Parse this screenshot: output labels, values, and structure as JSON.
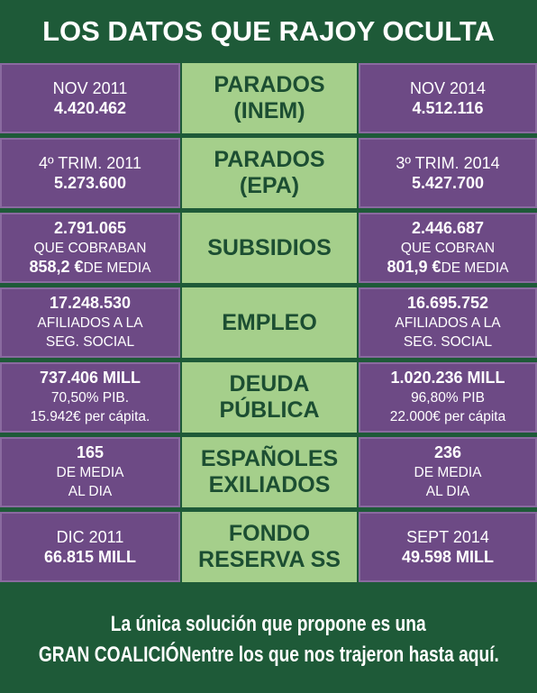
{
  "header": {
    "title": "LOS DATOS QUE RAJOY OCULTA"
  },
  "rows": [
    {
      "left": [
        [
          {
            "text": "NOV 2011"
          }
        ],
        [
          {
            "text": "4.420.462",
            "bold": true
          }
        ]
      ],
      "label": [
        "PARADOS",
        "(INEM)"
      ],
      "right": [
        [
          {
            "text": "NOV 2014"
          }
        ],
        [
          {
            "text": "4.512.116",
            "bold": true
          }
        ]
      ]
    },
    {
      "left": [
        [
          {
            "text": "4º TRIM. 2011"
          }
        ],
        [
          {
            "text": "5.273.600",
            "bold": true
          }
        ]
      ],
      "label": [
        "PARADOS",
        "(EPA)"
      ],
      "right": [
        [
          {
            "text": "3º TRIM. 2014"
          }
        ],
        [
          {
            "text": "5.427.700",
            "bold": true
          }
        ]
      ]
    },
    {
      "left": [
        [
          {
            "text": "2.791.065",
            "bold": true
          }
        ],
        [
          {
            "text": "QUE COBRABAN"
          }
        ],
        [
          {
            "text": "858,2 €",
            "bold": true
          },
          {
            "text": "DE MEDIA"
          }
        ]
      ],
      "label": [
        "SUBSIDIOS"
      ],
      "right": [
        [
          {
            "text": "2.446.687",
            "bold": true
          }
        ],
        [
          {
            "text": "QUE COBRAN"
          }
        ],
        [
          {
            "text": "801,9 €",
            "bold": true
          },
          {
            "text": "DE MEDIA"
          }
        ]
      ]
    },
    {
      "left": [
        [
          {
            "text": "17.248.530",
            "bold": true
          }
        ],
        [
          {
            "text": "AFILIADOS A LA"
          }
        ],
        [
          {
            "text": "SEG. SOCIAL"
          }
        ]
      ],
      "label": [
        "EMPLEO"
      ],
      "right": [
        [
          {
            "text": "16.695.752",
            "bold": true
          }
        ],
        [
          {
            "text": "AFILIADOS A LA"
          }
        ],
        [
          {
            "text": "SEG. SOCIAL"
          }
        ]
      ]
    },
    {
      "left": [
        [
          {
            "text": "737.406 MILL",
            "bold": true
          }
        ],
        [
          {
            "text": "70,50% PIB."
          }
        ],
        [
          {
            "text": "15.942€ per cápita."
          }
        ]
      ],
      "label": [
        "DEUDA",
        "PÚBLICA"
      ],
      "right": [
        [
          {
            "text": "1.020.236 MILL",
            "bold": true
          }
        ],
        [
          {
            "text": "96,80% PIB"
          }
        ],
        [
          {
            "text": "22.000€ per cápita"
          }
        ]
      ]
    },
    {
      "left": [
        [
          {
            "text": "165",
            "bold": true
          }
        ],
        [
          {
            "text": "DE MEDIA"
          }
        ],
        [
          {
            "text": "AL DIA"
          }
        ]
      ],
      "label": [
        "ESPAÑOLES",
        "EXILIADOS"
      ],
      "right": [
        [
          {
            "text": "236",
            "bold": true
          }
        ],
        [
          {
            "text": "DE MEDIA"
          }
        ],
        [
          {
            "text": "AL DIA"
          }
        ]
      ]
    },
    {
      "left": [
        [
          {
            "text": "DIC 2011"
          }
        ],
        [
          {
            "text": "66.815 MILL",
            "bold": true
          }
        ]
      ],
      "label": [
        "FONDO",
        "RESERVA SS"
      ],
      "right": [
        [
          {
            "text": "SEPT 2014"
          }
        ],
        [
          {
            "text": "49.598 MILL",
            "bold": true
          }
        ]
      ]
    }
  ],
  "footer": {
    "lines": [
      [
        {
          "text": "La única solución que propone es una"
        }
      ],
      [
        {
          "text": "GRAN COALICIÓN",
          "bold": true
        },
        {
          "text": "entre los que nos trajeron hasta aquí."
        }
      ]
    ]
  }
}
